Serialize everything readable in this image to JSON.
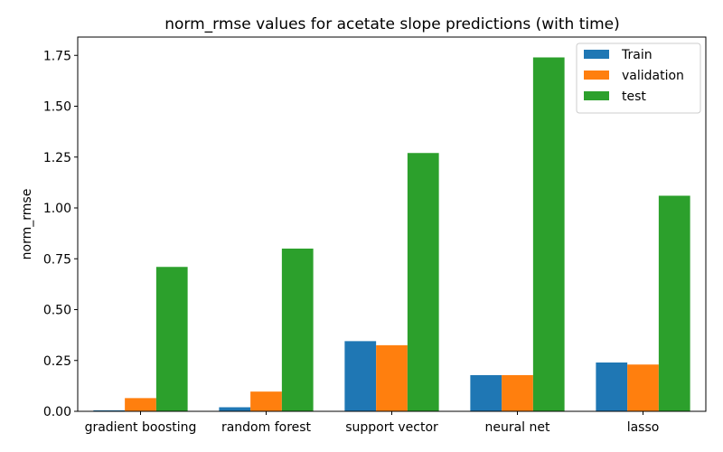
{
  "chart_data": {
    "type": "bar",
    "title": "norm_rmse values for acetate slope predictions (with time)",
    "xlabel": "",
    "ylabel": "norm_rmse",
    "ylim": [
      0,
      1.84
    ],
    "yticks": [
      "0.00",
      "0.25",
      "0.50",
      "0.75",
      "1.00",
      "1.25",
      "1.50",
      "1.75"
    ],
    "ytick_values": [
      0,
      0.25,
      0.5,
      0.75,
      1.0,
      1.25,
      1.5,
      1.75
    ],
    "categories": [
      "gradient boosting",
      "random forest",
      "support vector",
      "neural net",
      "lasso"
    ],
    "series": [
      {
        "name": "Train",
        "color": "#1f77b4",
        "values": [
          0.005,
          0.02,
          0.345,
          0.178,
          0.24
        ]
      },
      {
        "name": "validation",
        "color": "#ff7f0e",
        "values": [
          0.065,
          0.097,
          0.325,
          0.178,
          0.23
        ]
      },
      {
        "name": "test",
        "color": "#2ca02c",
        "values": [
          0.71,
          0.8,
          1.27,
          1.74,
          1.06
        ]
      }
    ],
    "legend": "top-right",
    "grid": false
  }
}
